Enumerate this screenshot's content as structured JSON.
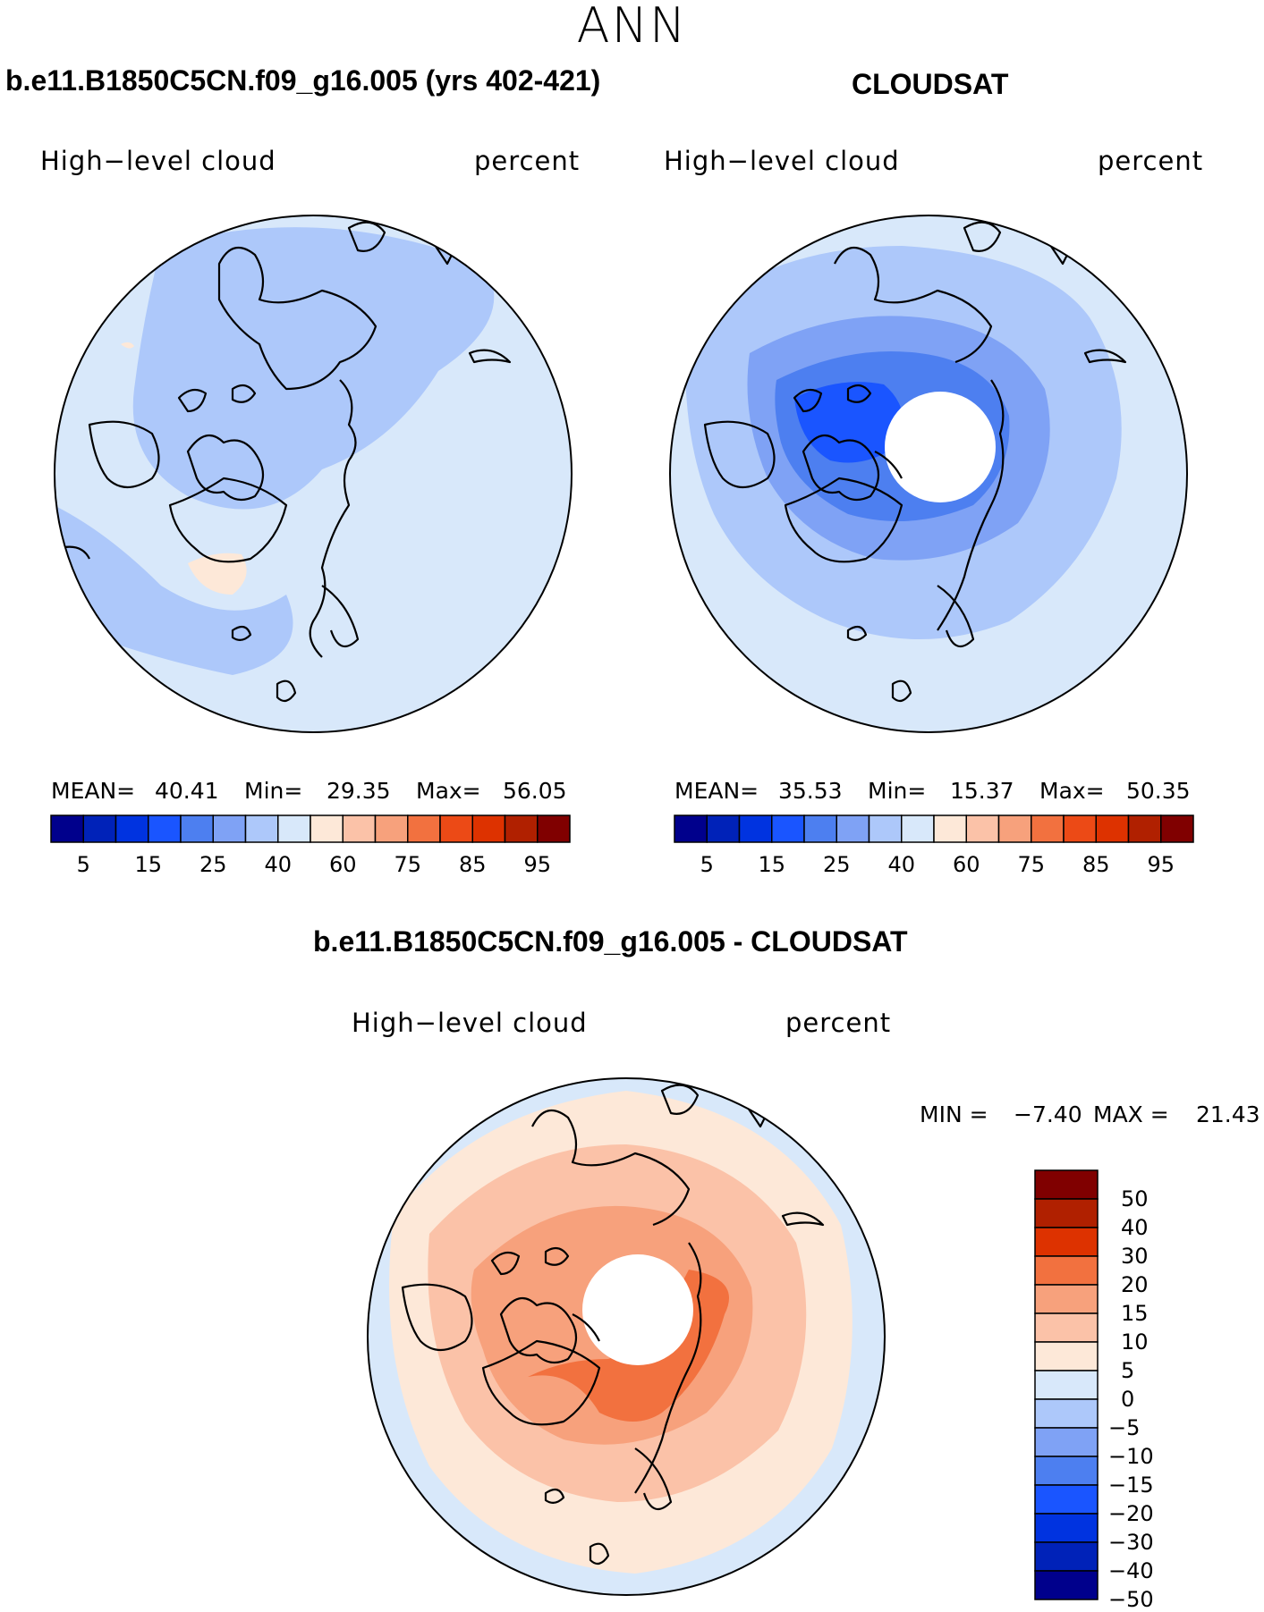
{
  "header": {
    "season": "ANN",
    "left_title": "b.e11.B1850C5CN.f09_g16.005 (yrs 402-421)",
    "right_title": "CLOUDSAT",
    "diff_title": "b.e11.B1850C5CN.f09_g16.005 - CLOUDSAT"
  },
  "panels": {
    "model": {
      "variable": "High−level cloud",
      "units": "percent",
      "mean_label": "MEAN=",
      "mean": "40.41",
      "min_label": "Min=",
      "min": "29.35",
      "max_label": "Max=",
      "max": "56.05"
    },
    "obs": {
      "variable": "High−level cloud",
      "units": "percent",
      "mean_label": "MEAN=",
      "mean": "35.53",
      "min_label": "Min=",
      "min": "15.37",
      "max_label": "Max=",
      "max": "50.35"
    },
    "diff": {
      "variable": "High−level cloud",
      "units": "percent",
      "min_label": "MIN =",
      "min": "−7.40",
      "max_label": "MAX =",
      "max": "21.43"
    }
  },
  "colorbars": {
    "abs": {
      "colors": [
        "#00008c",
        "#0022b8",
        "#0033e0",
        "#1a55ff",
        "#4d7ff0",
        "#7fa2f5",
        "#adc8fa",
        "#d8e8fa",
        "#fde8d8",
        "#fbc2a8",
        "#f7a17c",
        "#f2713f",
        "#ec4a16",
        "#dd3200",
        "#b02000",
        "#800000"
      ],
      "ticks": [
        "5",
        "15",
        "25",
        "40",
        "60",
        "75",
        "85",
        "95"
      ]
    },
    "diff": {
      "colors": [
        "#800000",
        "#b02000",
        "#dd3200",
        "#f2713f",
        "#f7a17c",
        "#fbc2a8",
        "#fde8d8",
        "#d8e8fa",
        "#adc8fa",
        "#7fa2f5",
        "#4d7ff0",
        "#1a55ff",
        "#0033e0",
        "#0022b8",
        "#00008c"
      ],
      "ticks": [
        "50",
        "40",
        "30",
        "20",
        "15",
        "10",
        "5",
        "0",
        "−5",
        "−10",
        "−15",
        "−20",
        "−30",
        "−40",
        "−50"
      ]
    }
  },
  "map_colors": {
    "light_blue": "#d8e8fa",
    "mid_blue": "#adc8fa",
    "blue": "#7fa2f5",
    "dark_blue": "#4d7ff0",
    "deep_blue": "#1a55ff",
    "peach": "#fde8d8",
    "light_orange": "#fbc2a8",
    "orange": "#f7a17c",
    "dark_orange": "#f2713f"
  }
}
